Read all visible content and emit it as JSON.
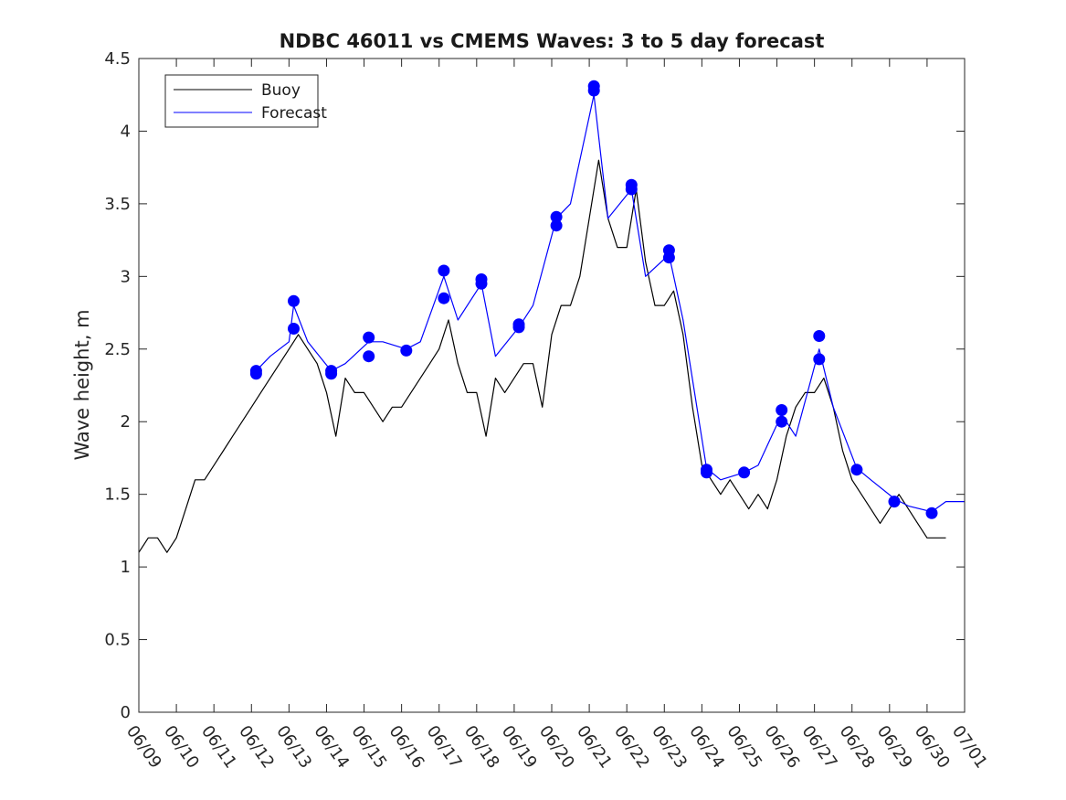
{
  "chart_data": {
    "type": "line",
    "title": "NDBC 46011 vs CMEMS Waves: 3 to 5 day forecast",
    "xlabel": "",
    "ylabel": "Wave height, m",
    "xlim": [
      "06/09",
      "07/01"
    ],
    "ylim": [
      0,
      4.5
    ],
    "yticks": [
      "0",
      "0.5",
      "1",
      "1.5",
      "2",
      "2.5",
      "3",
      "3.5",
      "4",
      "4.5"
    ],
    "xticks": [
      "06/09",
      "06/10",
      "06/11",
      "06/12",
      "06/13",
      "06/14",
      "06/15",
      "06/16",
      "06/17",
      "06/18",
      "06/19",
      "06/20",
      "06/21",
      "06/22",
      "06/23",
      "06/24",
      "06/25",
      "06/26",
      "06/27",
      "06/28",
      "06/29",
      "06/30",
      "07/01"
    ],
    "grid": false,
    "legend_position": "top-left",
    "colors": {
      "buoy": "#000000",
      "forecast": "#0000ff"
    },
    "series": [
      {
        "name": "Buoy",
        "x": [
          "06/09 00:00",
          "06/09 06:00",
          "06/09 12:00",
          "06/09 18:00",
          "06/10 00:00",
          "06/10 06:00",
          "06/10 12:00",
          "06/10 18:00",
          "06/11 00:00",
          "06/11 06:00",
          "06/11 12:00",
          "06/11 18:00",
          "06/12 00:00",
          "06/12 06:00",
          "06/12 12:00",
          "06/12 18:00",
          "06/13 00:00",
          "06/13 06:00",
          "06/13 12:00",
          "06/13 18:00",
          "06/14 00:00",
          "06/14 06:00",
          "06/14 12:00",
          "06/14 18:00",
          "06/15 00:00",
          "06/15 06:00",
          "06/15 12:00",
          "06/15 18:00",
          "06/16 00:00",
          "06/16 06:00",
          "06/16 12:00",
          "06/16 18:00",
          "06/17 00:00",
          "06/17 06:00",
          "06/17 12:00",
          "06/17 18:00",
          "06/18 00:00",
          "06/18 06:00",
          "06/18 12:00",
          "06/18 18:00",
          "06/19 00:00",
          "06/19 06:00",
          "06/19 12:00",
          "06/19 18:00",
          "06/20 00:00",
          "06/20 06:00",
          "06/20 12:00",
          "06/20 18:00",
          "06/21 00:00",
          "06/21 06:00",
          "06/21 12:00",
          "06/21 18:00",
          "06/22 00:00",
          "06/22 06:00",
          "06/22 12:00",
          "06/22 18:00",
          "06/23 00:00",
          "06/23 06:00",
          "06/23 12:00",
          "06/23 18:00",
          "06/24 00:00",
          "06/24 06:00",
          "06/24 12:00",
          "06/24 18:00",
          "06/25 00:00",
          "06/25 06:00",
          "06/25 12:00",
          "06/25 18:00",
          "06/26 00:00",
          "06/26 06:00",
          "06/26 12:00",
          "06/26 18:00",
          "06/27 00:00",
          "06/27 06:00",
          "06/27 12:00",
          "06/27 18:00",
          "06/28 00:00",
          "06/28 06:00",
          "06/28 12:00",
          "06/28 18:00",
          "06/29 00:00",
          "06/29 06:00",
          "06/29 12:00",
          "06/29 18:00",
          "06/30 00:00",
          "06/30 06:00",
          "06/30 12:00"
        ],
        "values": [
          1.1,
          1.2,
          1.2,
          1.1,
          1.2,
          1.4,
          1.6,
          1.6,
          1.7,
          1.8,
          1.9,
          2.0,
          2.1,
          2.2,
          2.3,
          2.4,
          2.5,
          2.6,
          2.5,
          2.4,
          2.2,
          1.9,
          2.3,
          2.2,
          2.2,
          2.1,
          2.0,
          2.1,
          2.1,
          2.2,
          2.3,
          2.4,
          2.5,
          2.7,
          2.4,
          2.2,
          2.2,
          1.9,
          2.3,
          2.2,
          2.3,
          2.4,
          2.4,
          2.1,
          2.6,
          2.8,
          2.8,
          3.0,
          3.4,
          3.8,
          3.4,
          3.2,
          3.2,
          3.6,
          3.1,
          2.8,
          2.8,
          2.9,
          2.6,
          2.1,
          1.7,
          1.6,
          1.5,
          1.6,
          1.5,
          1.4,
          1.5,
          1.4,
          1.6,
          1.9,
          2.1,
          2.2,
          2.2,
          2.3,
          2.1,
          1.8,
          1.6,
          1.5,
          1.4,
          1.3,
          1.4,
          1.5,
          1.4,
          1.3,
          1.2,
          1.2,
          1.2
        ]
      },
      {
        "name": "Forecast",
        "x": [
          "06/12 03:00",
          "06/12 12:00",
          "06/13 00:00",
          "06/13 03:00",
          "06/13 12:00",
          "06/14 03:00",
          "06/14 12:00",
          "06/15 03:00",
          "06/15 12:00",
          "06/16 03:00",
          "06/16 12:00",
          "06/17 03:00",
          "06/17 12:00",
          "06/18 03:00",
          "06/18 12:00",
          "06/19 03:00",
          "06/19 12:00",
          "06/20 03:00",
          "06/20 12:00",
          "06/21 03:00",
          "06/21 12:00",
          "06/22 03:00",
          "06/22 12:00",
          "06/23 03:00",
          "06/23 12:00",
          "06/24 03:00",
          "06/24 12:00",
          "06/25 03:00",
          "06/25 12:00",
          "06/26 03:00",
          "06/26 12:00",
          "06/27 03:00",
          "06/27 12:00",
          "06/28 03:00",
          "06/28 12:00",
          "06/29 03:00",
          "06/29 12:00",
          "06/30 03:00",
          "06/30 12:00",
          "07/01 00:00"
        ],
        "values": [
          2.35,
          2.45,
          2.55,
          2.8,
          2.55,
          2.35,
          2.4,
          2.55,
          2.55,
          2.5,
          2.55,
          3.0,
          2.7,
          2.95,
          2.45,
          2.65,
          2.8,
          3.4,
          3.5,
          4.25,
          3.4,
          3.6,
          3.0,
          3.15,
          2.7,
          1.68,
          1.6,
          1.65,
          1.7,
          2.05,
          1.9,
          2.5,
          2.1,
          1.68,
          1.6,
          1.47,
          1.42,
          1.38,
          1.45,
          1.45
        ]
      }
    ],
    "markers": {
      "x": [
        "06/12 03:00",
        "06/12 03:00",
        "06/13 03:00",
        "06/13 03:00",
        "06/14 03:00",
        "06/14 03:00",
        "06/15 03:00",
        "06/15 03:00",
        "06/16 03:00",
        "06/17 03:00",
        "06/17 03:00",
        "06/18 03:00",
        "06/18 03:00",
        "06/19 03:00",
        "06/19 03:00",
        "06/20 03:00",
        "06/20 03:00",
        "06/21 03:00",
        "06/21 03:00",
        "06/22 03:00",
        "06/22 03:00",
        "06/23 03:00",
        "06/23 03:00",
        "06/24 03:00",
        "06/24 03:00",
        "06/25 03:00",
        "06/26 03:00",
        "06/26 03:00",
        "06/27 03:00",
        "06/27 03:00",
        "06/28 03:00",
        "06/29 03:00",
        "06/30 03:00"
      ],
      "values": [
        2.33,
        2.35,
        2.64,
        2.83,
        2.33,
        2.35,
        2.45,
        2.58,
        2.49,
        2.85,
        3.04,
        2.95,
        2.98,
        2.65,
        2.67,
        3.35,
        3.41,
        4.28,
        4.31,
        3.6,
        3.63,
        3.13,
        3.18,
        1.65,
        1.67,
        1.65,
        2.0,
        2.08,
        2.43,
        2.59,
        1.67,
        1.45,
        1.37
      ]
    }
  }
}
